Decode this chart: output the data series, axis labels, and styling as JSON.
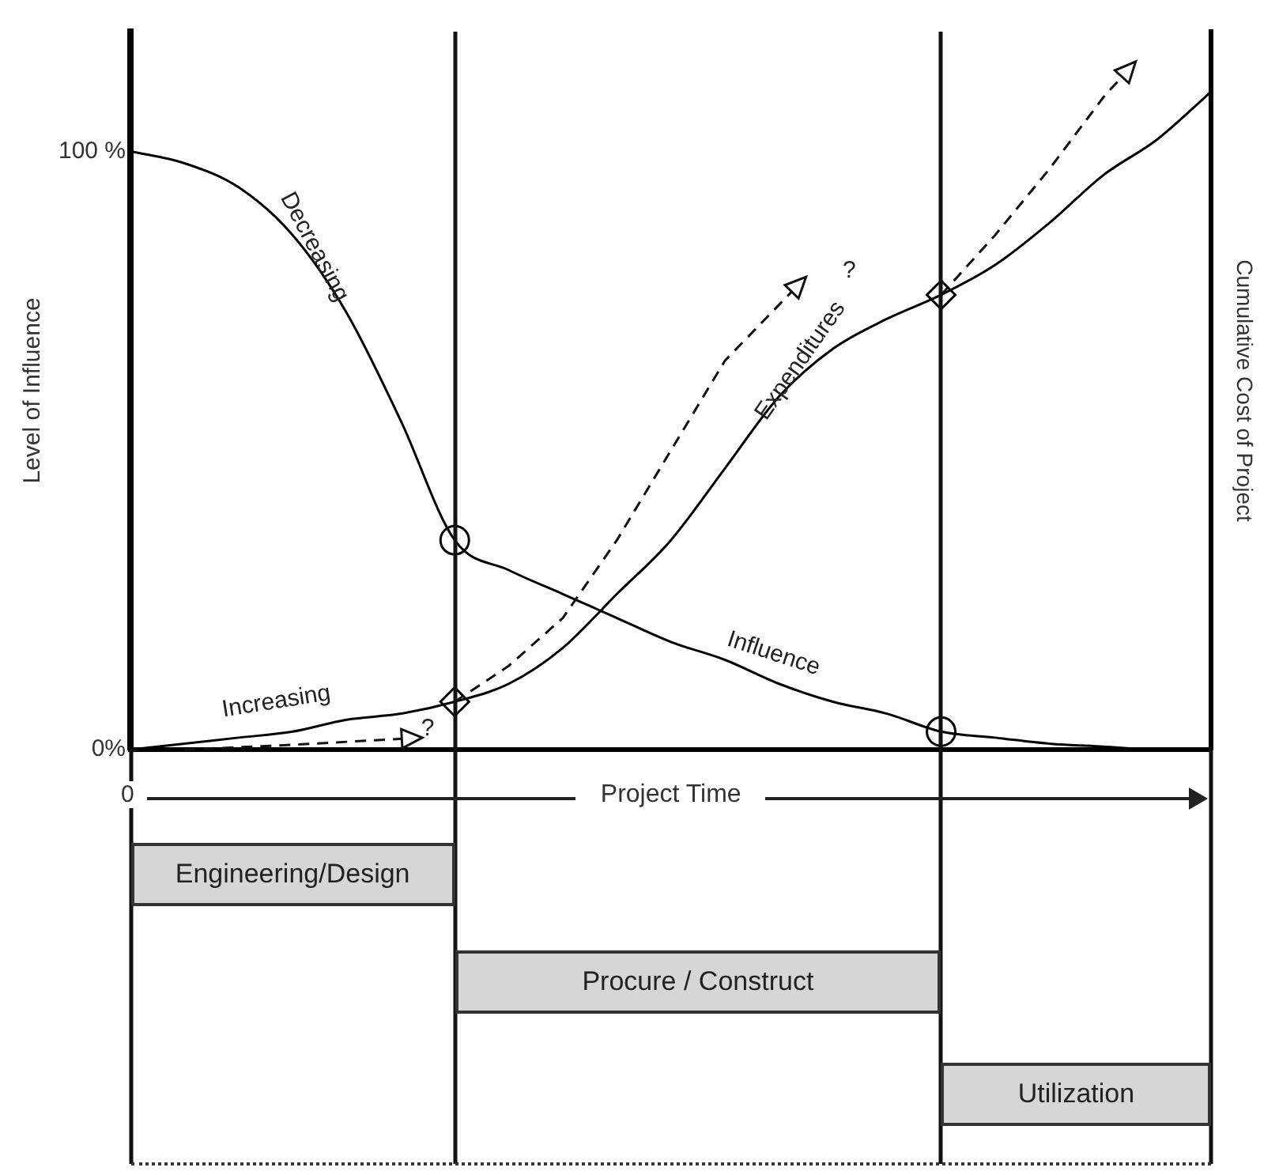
{
  "chart_data": {
    "type": "line",
    "ylabel": "Level of Influence",
    "y2label": "Cumulative Cost of Project",
    "categories": [
      null,
      null,
      null,
      null,
      null,
      null,
      null,
      null,
      null,
      null,
      null,
      null,
      null,
      null,
      null,
      null,
      null,
      null,
      null,
      null,
      null
    ],
    "ylim": [
      0,
      120
    ],
    "yticks": [
      {
        "value": 0,
        "label": "0%"
      },
      {
        "value": 100,
        "label": "100 %"
      }
    ],
    "series": [
      {
        "color": "#000000",
        "line_style": "solid",
        "marker": "none",
        "values": [
          100,
          98,
          94,
          86,
          73,
          55,
          35,
          30,
          26,
          22,
          18,
          15,
          11,
          8,
          6,
          3,
          2,
          1,
          0.5,
          0,
          0
        ]
      },
      {
        "color": "#000000",
        "line_style": "solid",
        "marker": "none",
        "values": [
          0,
          1,
          2,
          3,
          5,
          6,
          8,
          11,
          17,
          26,
          35,
          47,
          59,
          67,
          72,
          76,
          81,
          88,
          96,
          102,
          110
        ]
      },
      {
        "type": "scatter",
        "color": "#000000",
        "marker": "circle",
        "values": [
          null,
          null,
          null,
          null,
          null,
          null,
          35,
          null,
          null,
          null,
          null,
          null,
          null,
          null,
          null,
          3,
          null,
          null,
          null,
          null,
          null
        ]
      },
      {
        "type": "scatter",
        "color": "#000000",
        "marker": "diamond",
        "values": [
          null,
          null,
          null,
          null,
          null,
          null,
          8,
          null,
          null,
          null,
          null,
          null,
          null,
          null,
          null,
          76,
          null,
          null,
          null,
          null,
          null
        ]
      }
    ],
    "annotations": [
      "Decreasing",
      "Influence",
      "Increasing",
      "Expenditures",
      "?",
      "?",
      "0",
      "Project Time",
      "Engineering/Design",
      "Procure / Construct",
      "Utilization"
    ],
    "grid": false,
    "legend": false,
    "tick_labels": "y"
  }
}
